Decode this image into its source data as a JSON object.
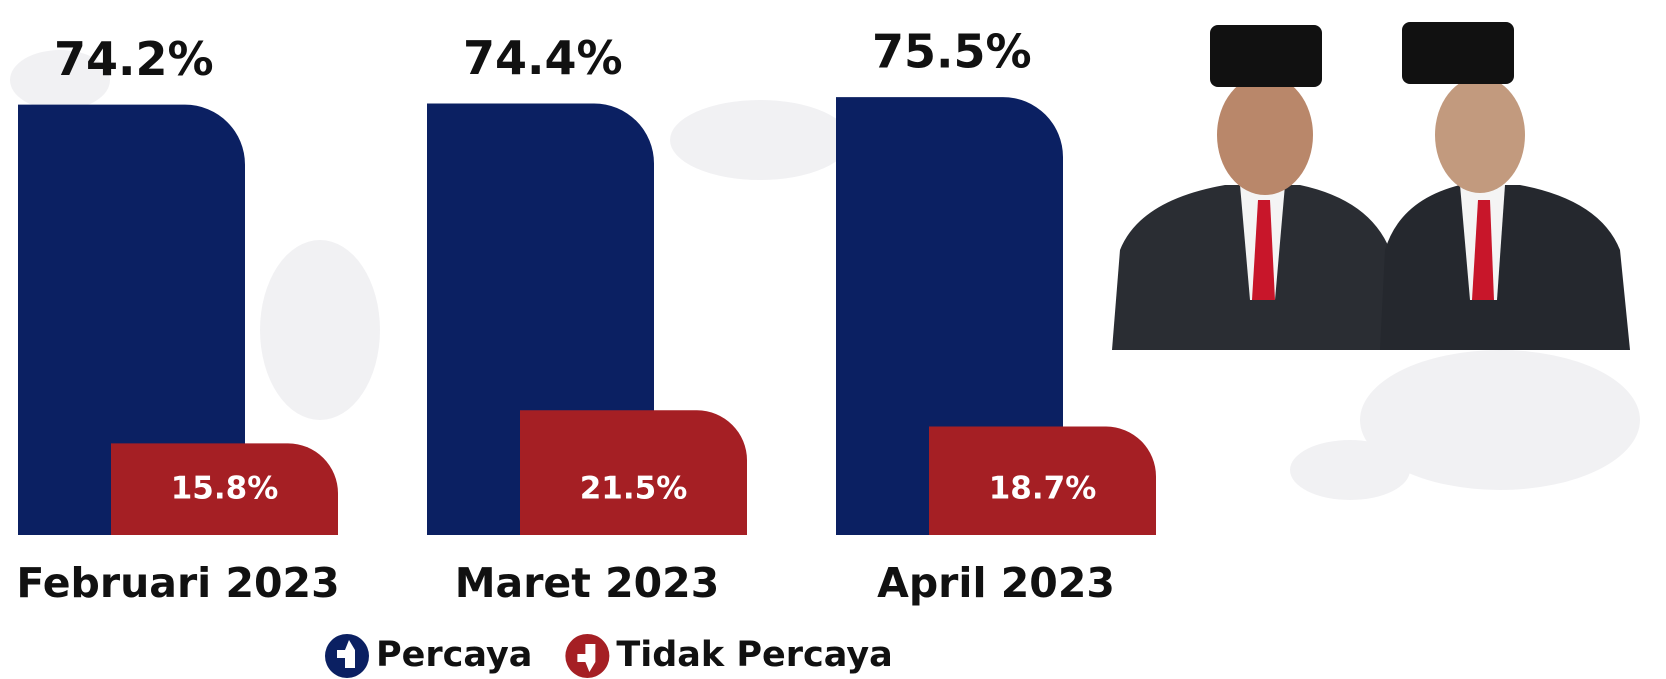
{
  "chart_data": {
    "type": "bar",
    "categories": [
      "Februari 2023",
      "Maret 2023",
      "April 2023"
    ],
    "series": [
      {
        "name": "Percaya",
        "color": "#0b2062",
        "values": [
          74.2,
          74.4,
          75.5
        ],
        "value_labels": [
          "74.2%",
          "74.4%",
          "75.5%"
        ]
      },
      {
        "name": "Tidak Percaya",
        "color": "#a51f24",
        "values": [
          15.8,
          21.5,
          18.7
        ],
        "value_labels": [
          "15.8%",
          "21.5%",
          "18.7%"
        ]
      }
    ]
  }
}
